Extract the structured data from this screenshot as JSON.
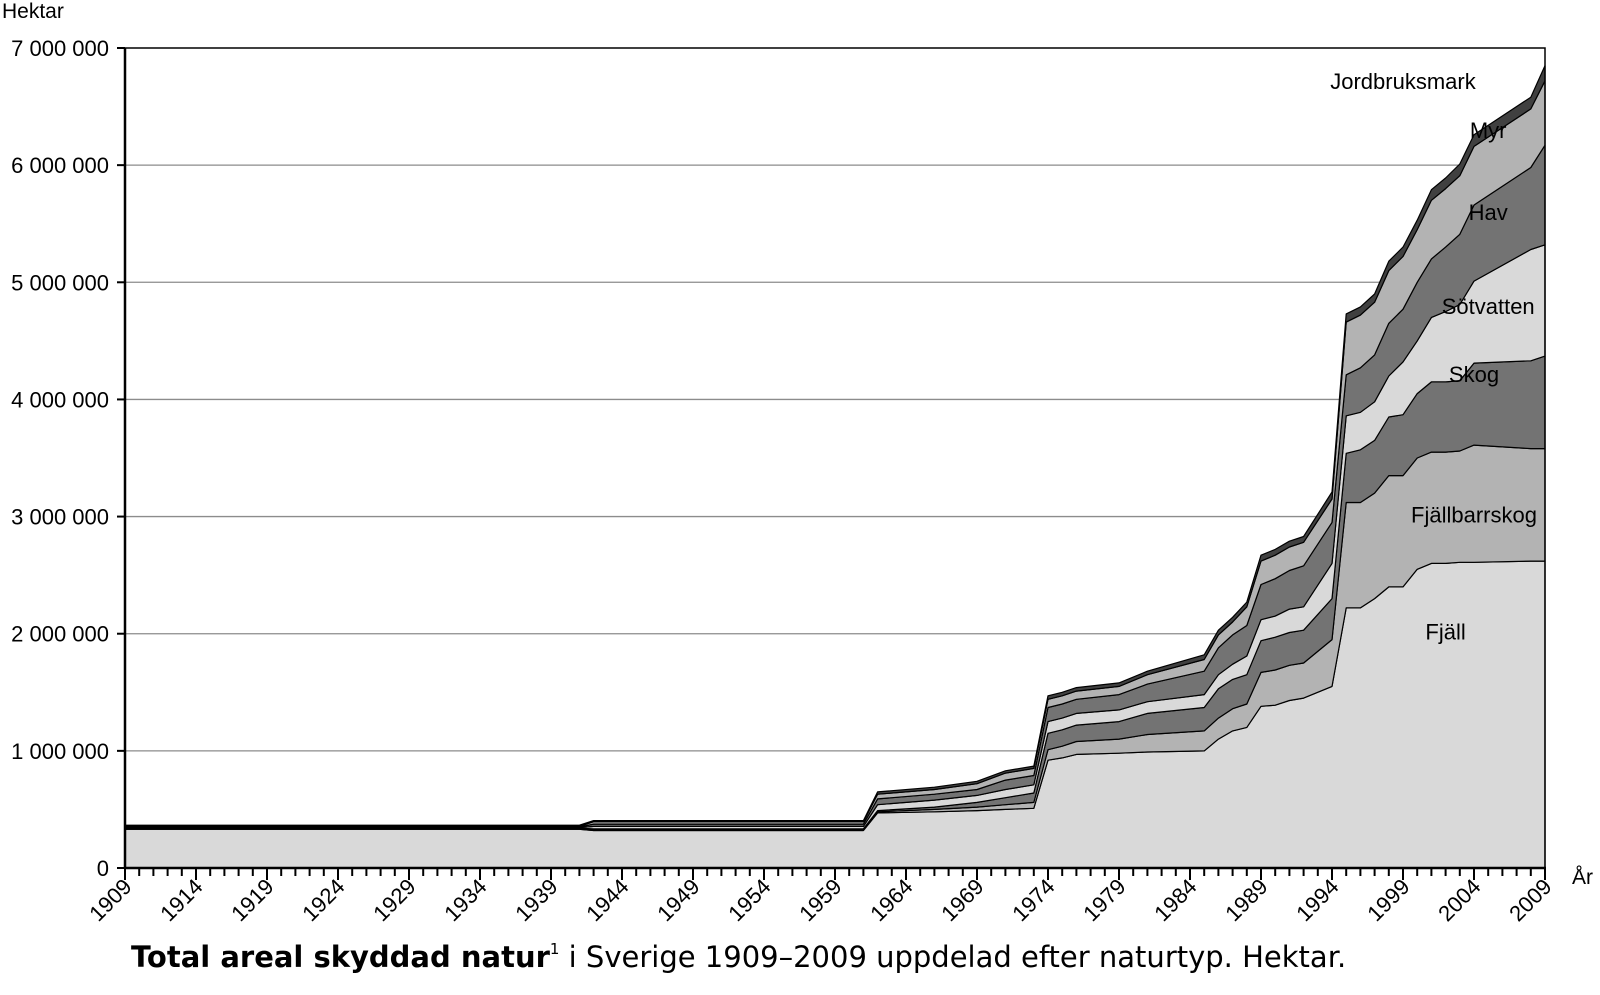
{
  "chart_data": {
    "type": "area",
    "stacked": true,
    "ylabel": "Hektar",
    "xlabel": "År",
    "ylim": [
      0,
      7000000
    ],
    "xlim": [
      1909,
      2009
    ],
    "yticks": [
      {
        "value": 0,
        "label": "0"
      },
      {
        "value": 1000000,
        "label": "1 000 000"
      },
      {
        "value": 2000000,
        "label": "2 000 000"
      },
      {
        "value": 3000000,
        "label": "3 000 000"
      },
      {
        "value": 4000000,
        "label": "4 000 000"
      },
      {
        "value": 5000000,
        "label": "5 000 000"
      },
      {
        "value": 6000000,
        "label": "6 000 000"
      },
      {
        "value": 7000000,
        "label": "7 000 000"
      }
    ],
    "xticks": [
      "1909",
      "1914",
      "1919",
      "1924",
      "1929",
      "1934",
      "1939",
      "1944",
      "1949",
      "1954",
      "1959",
      "1964",
      "1969",
      "1974",
      "1979",
      "1984",
      "1989",
      "1994",
      "1999",
      "2004",
      "2009"
    ],
    "grid": "horizontal",
    "x": [
      1909,
      1941,
      1942,
      1961,
      1962,
      1966,
      1969,
      1971,
      1973,
      1974,
      1975,
      1976,
      1979,
      1981,
      1985,
      1986,
      1987,
      1988,
      1989,
      1990,
      1991,
      1992,
      1994,
      1995,
      1996,
      1997,
      1998,
      1999,
      2000,
      2001,
      2002,
      2003,
      2004,
      2008,
      2009
    ],
    "series": [
      {
        "name": "Fjäll",
        "color": "#d9d9d9",
        "values": [
          330000,
          330000,
          320000,
          320000,
          470000,
          480000,
          490000,
          500000,
          510000,
          920000,
          940000,
          970000,
          980000,
          990000,
          1000000,
          1100000,
          1170000,
          1200000,
          1380000,
          1390000,
          1430000,
          1450000,
          1550000,
          2220000,
          2220000,
          2300000,
          2400000,
          2400000,
          2550000,
          2600000,
          2600000,
          2610000,
          2610000,
          2620000,
          2620000
        ]
      },
      {
        "name": "Fjällbarrskog",
        "color": "#b3b3b3",
        "values": [
          5000,
          5000,
          5000,
          5000,
          10000,
          20000,
          30000,
          40000,
          50000,
          90000,
          100000,
          110000,
          120000,
          150000,
          170000,
          180000,
          190000,
          200000,
          290000,
          300000,
          300000,
          300000,
          400000,
          900000,
          900000,
          900000,
          950000,
          950000,
          950000,
          950000,
          950000,
          950000,
          1000000,
          960000,
          960000
        ]
      },
      {
        "name": "Skog",
        "color": "#737373",
        "values": [
          5000,
          5000,
          10000,
          10000,
          10000,
          20000,
          40000,
          60000,
          80000,
          140000,
          140000,
          140000,
          150000,
          180000,
          200000,
          250000,
          250000,
          250000,
          270000,
          280000,
          280000,
          280000,
          350000,
          420000,
          450000,
          450000,
          500000,
          520000,
          550000,
          600000,
          600000,
          600000,
          700000,
          750000,
          790000
        ]
      },
      {
        "name": "Sötvatten",
        "color": "#d9d9d9",
        "values": [
          5000,
          5000,
          20000,
          20000,
          50000,
          60000,
          60000,
          70000,
          70000,
          100000,
          100000,
          100000,
          100000,
          100000,
          110000,
          120000,
          130000,
          160000,
          180000,
          180000,
          200000,
          200000,
          300000,
          320000,
          320000,
          330000,
          350000,
          450000,
          450000,
          550000,
          600000,
          650000,
          700000,
          950000,
          950000
        ]
      },
      {
        "name": "Hav",
        "color": "#737373",
        "values": [
          5000,
          5000,
          20000,
          20000,
          50000,
          50000,
          50000,
          80000,
          80000,
          120000,
          120000,
          120000,
          130000,
          150000,
          200000,
          230000,
          250000,
          260000,
          300000,
          320000,
          330000,
          350000,
          350000,
          350000,
          380000,
          400000,
          450000,
          450000,
          500000,
          500000,
          550000,
          600000,
          650000,
          700000,
          850000
        ]
      },
      {
        "name": "Myr",
        "color": "#b3b3b3",
        "values": [
          5000,
          5000,
          20000,
          20000,
          40000,
          40000,
          50000,
          60000,
          60000,
          70000,
          70000,
          70000,
          70000,
          80000,
          100000,
          110000,
          110000,
          160000,
          200000,
          200000,
          200000,
          200000,
          200000,
          450000,
          450000,
          450000,
          450000,
          450000,
          450000,
          500000,
          500000,
          500000,
          500000,
          500000,
          550000
        ]
      },
      {
        "name": "Jordbruksmark",
        "color": "#404040",
        "values": [
          10000,
          10000,
          10000,
          10000,
          20000,
          20000,
          20000,
          20000,
          20000,
          30000,
          30000,
          30000,
          30000,
          30000,
          40000,
          40000,
          40000,
          40000,
          50000,
          50000,
          50000,
          50000,
          60000,
          70000,
          70000,
          70000,
          80000,
          80000,
          80000,
          90000,
          90000,
          100000,
          100000,
          100000,
          130000
        ]
      }
    ],
    "series_labels": [
      {
        "text": "Fjäll",
        "x": 2002,
        "y": 1950000
      },
      {
        "text": "Fjällbarrskog",
        "x": 2004,
        "y": 2950000
      },
      {
        "text": "Skog",
        "x": 2004,
        "y": 4150000
      },
      {
        "text": "Sötvatten",
        "x": 2005,
        "y": 4730000
      },
      {
        "text": "Hav",
        "x": 2005,
        "y": 5530000
      },
      {
        "text": "Myr",
        "x": 2005,
        "y": 6230000
      },
      {
        "text": "Jordbruksmark",
        "x": 1999,
        "y": 6650000
      }
    ]
  },
  "caption": {
    "bold": "Total areal skyddad natur",
    "sup": "1",
    "rest": " i Sverige 1909–2009 uppdelad efter naturtyp. Hektar."
  }
}
